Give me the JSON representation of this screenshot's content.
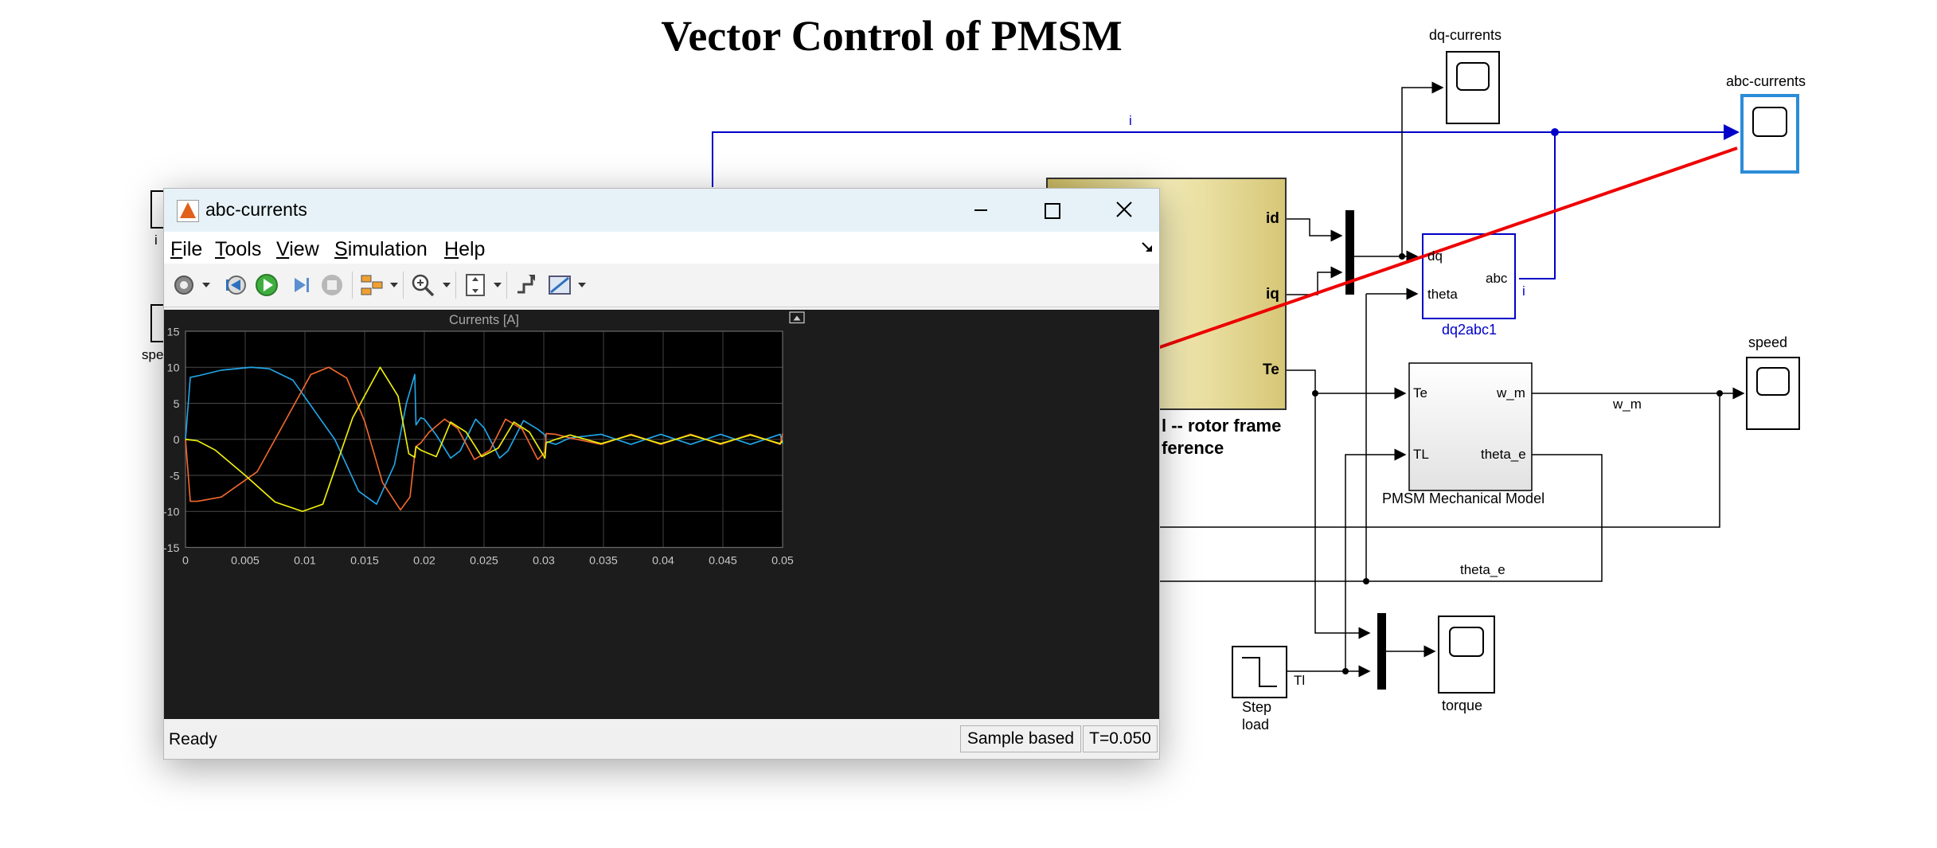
{
  "diagram": {
    "title": "Vector Control of PMSM",
    "scopes": {
      "dq": "dq-currents",
      "abc": "abc-currents",
      "speed": "speed",
      "torque": "torque"
    },
    "block_labels": {
      "dq2abc": "dq2abc1",
      "mechanical": "PMSM Mechanical Model",
      "step_line1": "Step",
      "step_line2": "load",
      "electrical_line1": "l -- rotor frame",
      "electrical_line2": "ference",
      "left_frag1": "i",
      "left_frag2": "spe"
    },
    "ports": {
      "id": "id",
      "iq": "iq",
      "te_out": "Te",
      "dq": "dq",
      "abc": "abc",
      "theta": "theta",
      "te_in": "Te",
      "tl_in": "TL",
      "w_m": "w_m",
      "theta_e": "theta_e"
    },
    "signals": {
      "i_top": "i",
      "i_small": "i",
      "w_m": "w_m",
      "theta_e": "theta_e",
      "tl": "Tl"
    }
  },
  "scope_window": {
    "title": "abc-currents",
    "menu": [
      "File",
      "Tools",
      "View",
      "Simulation",
      "Help"
    ],
    "toolbar": [
      "settings-icon",
      "step-back-icon",
      "run-icon",
      "step-forward-icon",
      "stop-icon",
      "signal-select-icon",
      "zoom-icon",
      "fit-axes-icon",
      "highlight-icon",
      "measurement-icon"
    ],
    "status": {
      "left": "Ready",
      "mode": "Sample based",
      "time": "T=0.050"
    }
  },
  "colors": {
    "phase_a": "#21a6e8",
    "phase_b": "#f0682e",
    "phase_c": "#f0f00c",
    "plot_bg": "#000000",
    "frame_bg": "#1c1c1c",
    "grid": "#4a4a4a",
    "signal_blue": "#0000c8",
    "pointer_red": "#ee0000",
    "block_gold": "#e9dc92"
  },
  "chart_data": {
    "type": "line",
    "title": "Currents [A]",
    "xlabel": "",
    "ylabel": "",
    "xlim": [
      0,
      0.05
    ],
    "ylim": [
      -15,
      15
    ],
    "xticks": [
      "0",
      "0.005",
      "0.01",
      "0.015",
      "0.02",
      "0.025",
      "0.03",
      "0.035",
      "0.04",
      "0.045",
      "0.05"
    ],
    "yticks": [
      "15",
      "10",
      "5",
      "0",
      "-5",
      "-10",
      "-15"
    ],
    "grid": true,
    "series": [
      {
        "color": "#21a6e8",
        "x": [
          0,
          0.0004,
          0.001,
          0.003,
          0.0055,
          0.007,
          0.009,
          0.011,
          0.0125,
          0.0145,
          0.016,
          0.0175,
          0.0185,
          0.0192,
          0.0193,
          0.0197,
          0.02,
          0.021,
          0.0222,
          0.023,
          0.0243,
          0.025,
          0.0263,
          0.027,
          0.0283,
          0.0295,
          0.0301,
          0.0302,
          0.031,
          0.0322,
          0.0348,
          0.0373,
          0.0398,
          0.0423,
          0.0448,
          0.0473,
          0.0498,
          0.05
        ],
        "y": [
          0,
          8.6,
          8.8,
          9.6,
          10.0,
          9.8,
          8.2,
          3.5,
          0,
          -7.2,
          -9.0,
          -3.5,
          5,
          9.0,
          2.0,
          3.0,
          2.8,
          0.6,
          -2.6,
          -1.6,
          2.8,
          1.6,
          -2.6,
          -1.6,
          2.6,
          1.4,
          0.6,
          -0.3,
          -0.7,
          0.2,
          0.7,
          -0.7,
          0.7,
          -0.7,
          0.7,
          -0.7,
          0.7,
          -0.6
        ]
      },
      {
        "color": "#f0682e",
        "x": [
          0,
          0.0004,
          0.001,
          0.003,
          0.006,
          0.0085,
          0.0105,
          0.012,
          0.0135,
          0.015,
          0.0165,
          0.018,
          0.0188,
          0.0192,
          0.0193,
          0.0197,
          0.0204,
          0.0217,
          0.0228,
          0.0242,
          0.0255,
          0.0268,
          0.0282,
          0.0295,
          0.0301,
          0.0302,
          0.031,
          0.0322,
          0.0348,
          0.0373,
          0.0398,
          0.0423,
          0.0448,
          0.0473,
          0.0498,
          0.05
        ],
        "y": [
          0,
          -8.6,
          -8.6,
          -8.0,
          -4.5,
          3.0,
          9.0,
          10.0,
          8.5,
          2.5,
          -6.0,
          -9.8,
          -8.0,
          -2.0,
          -1.0,
          -0.5,
          1.0,
          2.8,
          1.5,
          -2.8,
          -1.5,
          2.8,
          1.4,
          -2.8,
          -1.8,
          0.8,
          0.7,
          0.2,
          -0.7,
          0.7,
          -0.7,
          0.7,
          -0.7,
          0.7,
          -0.7,
          0.8
        ]
      },
      {
        "color": "#f0f00c",
        "x": [
          0,
          0.001,
          0.0025,
          0.005,
          0.0075,
          0.0098,
          0.0115,
          0.014,
          0.0163,
          0.0178,
          0.0187,
          0.0192,
          0.0193,
          0.0197,
          0.021,
          0.0222,
          0.0235,
          0.0248,
          0.0262,
          0.0275,
          0.0288,
          0.0301,
          0.0302,
          0.031,
          0.0322,
          0.0348,
          0.0373,
          0.0398,
          0.0423,
          0.0448,
          0.0473,
          0.0498,
          0.05
        ],
        "y": [
          0,
          -0.2,
          -1.5,
          -5.0,
          -8.7,
          -10.0,
          -9.0,
          3.0,
          10.0,
          6.0,
          -2.0,
          -2.5,
          -1.0,
          -1.5,
          -2.4,
          2.4,
          1.0,
          -2.4,
          -1.2,
          2.4,
          1.0,
          -2.6,
          -0.5,
          0,
          0.6,
          -0.6,
          0.6,
          -0.6,
          0.6,
          -0.6,
          0.6,
          -0.6,
          -0.2
        ]
      }
    ]
  }
}
